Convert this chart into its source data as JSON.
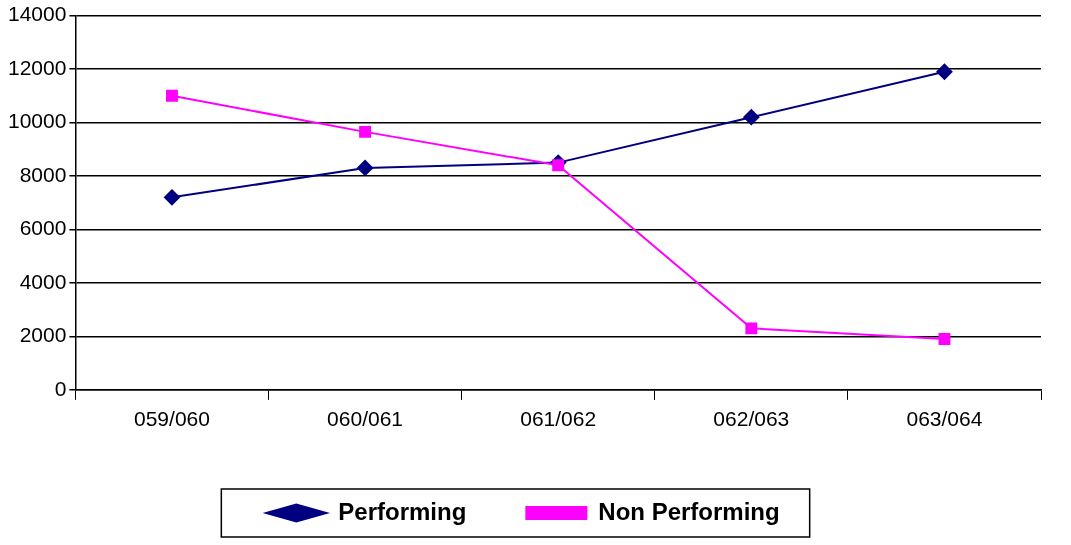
{
  "chart_data": {
    "type": "line",
    "categories": [
      "059/060",
      "060/061",
      "061/062",
      "062/063",
      "063/064"
    ],
    "series": [
      {
        "name": "Performing",
        "color": "#000080",
        "marker": "diamond",
        "values": [
          7200,
          8300,
          8500,
          10200,
          11900
        ]
      },
      {
        "name": "Non Performing",
        "color": "#ff00ff",
        "marker": "square",
        "values": [
          11000,
          9650,
          8400,
          2300,
          1900
        ]
      }
    ],
    "ylim": [
      0,
      14000
    ],
    "yticks": [
      0,
      2000,
      4000,
      6000,
      8000,
      10000,
      12000,
      14000
    ],
    "grid": "y",
    "legend": "bottom"
  }
}
